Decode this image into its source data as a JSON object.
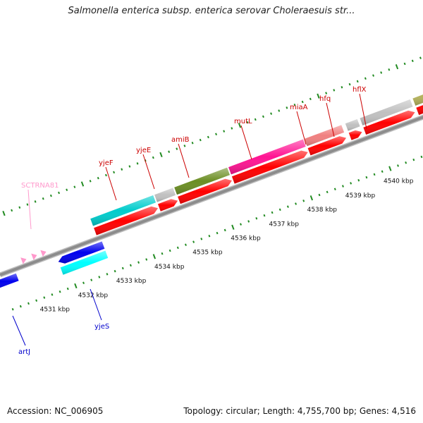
{
  "title": "Salmonella enterica subsp. enterica serovar Choleraesuis str...",
  "footer": {
    "accession": "Accession: NC_006905",
    "topology": "Topology: circular; Length: 4,755,700 bp; Genes: 4,516"
  },
  "scale": {
    "tick_labels": [
      "4531 kbp",
      "4532 kbp",
      "4533 kbp",
      "4534 kbp",
      "4535 kbp",
      "4536 kbp",
      "4537 kbp",
      "4538 kbp",
      "4539 kbp",
      "4540 kbp"
    ],
    "tick_color": "#228B22"
  },
  "gene_labels": [
    {
      "name": "SCTRNA81",
      "color": "#ff99cc"
    },
    {
      "name": "yjeF",
      "color": "#cc0000"
    },
    {
      "name": "yjeE",
      "color": "#cc0000"
    },
    {
      "name": "amiB",
      "color": "#cc0000"
    },
    {
      "name": "mutL",
      "color": "#cc0000"
    },
    {
      "name": "miaA",
      "color": "#cc0000"
    },
    {
      "name": "hfq",
      "color": "#cc0000"
    },
    {
      "name": "hflX",
      "color": "#cc0000"
    },
    {
      "name": "artJ",
      "color": "#0000cc"
    },
    {
      "name": "yjeS",
      "color": "#0000cc"
    }
  ],
  "colors": {
    "backbone": "#8c8c8c",
    "forward_gene": "#ff0000",
    "reverse_gene": "#0000ee",
    "cog_cyan": "#00cccc",
    "cog_olive": "#6b8e23",
    "cog_magenta": "#ff1493",
    "cog_salmon": "#f08080",
    "cog_gray": "#c0c0c0",
    "cog_khaki": "#b5b35c",
    "cog_light_cyan": "#00ffff",
    "trna": "#ff99cc"
  }
}
